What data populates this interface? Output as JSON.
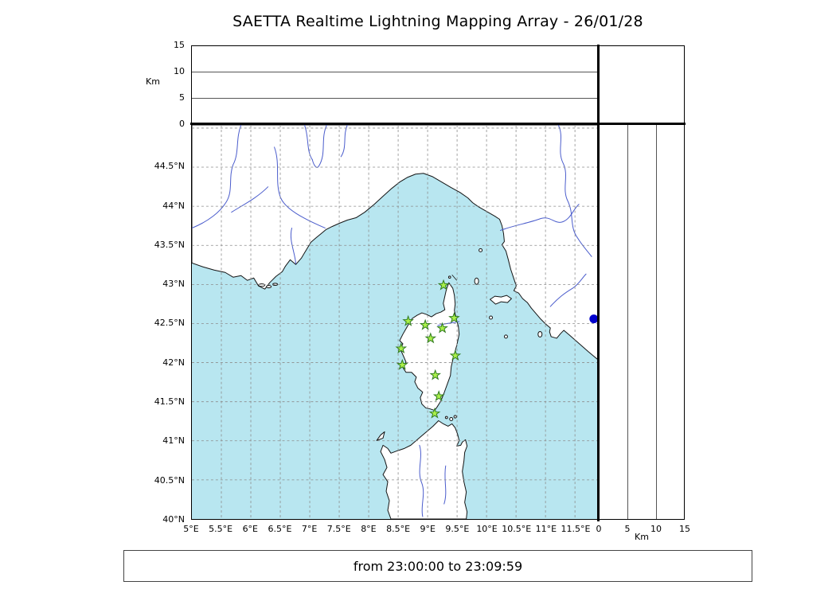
{
  "title": "SAETTA Realtime Lightning Mapping Array - 26/01/28",
  "time_range_label": "from 23:00:00 to 23:09:59",
  "colors": {
    "sea": "#b8e6f0",
    "land": "#ffffff",
    "coastline": "#141414",
    "river": "#4a5ccc",
    "grid": "#8c8c8c",
    "station_fill": "#aaf04a",
    "station_stroke": "#2f7a1f",
    "source_dot": "#0000cd"
  },
  "altitude_axis": {
    "unit_label_left": "Km",
    "unit_label_right": "Km",
    "range_km": [
      0,
      15
    ],
    "ticks": [
      {
        "label": "0",
        "km": 0
      },
      {
        "label": "5",
        "km": 5
      },
      {
        "label": "10",
        "km": 10
      },
      {
        "label": "15",
        "km": 15
      }
    ],
    "gridlines_km": [
      5,
      10
    ]
  },
  "map": {
    "bounds": {
      "lon_min": 5.0,
      "lon_max": 11.89,
      "lat_min": 40.0,
      "lat_max": 45.04
    },
    "lat_ticks": [
      {
        "label": "40°N",
        "lat": 40.0
      },
      {
        "label": "40.5°N",
        "lat": 40.5
      },
      {
        "label": "41°N",
        "lat": 41.0
      },
      {
        "label": "41.5°N",
        "lat": 41.5
      },
      {
        "label": "42°N",
        "lat": 42.0
      },
      {
        "label": "42.5°N",
        "lat": 42.5
      },
      {
        "label": "43°N",
        "lat": 43.0
      },
      {
        "label": "43.5°N",
        "lat": 43.5
      },
      {
        "label": "44°N",
        "lat": 44.0
      },
      {
        "label": "44.5°N",
        "lat": 44.5
      }
    ],
    "lon_ticks": [
      {
        "label": "5°E",
        "lon": 5.0
      },
      {
        "label": "5.5°E",
        "lon": 5.5
      },
      {
        "label": "6°E",
        "lon": 6.0
      },
      {
        "label": "6.5°E",
        "lon": 6.5
      },
      {
        "label": "7°E",
        "lon": 7.0
      },
      {
        "label": "7.5°E",
        "lon": 7.5
      },
      {
        "label": "8°E",
        "lon": 8.0
      },
      {
        "label": "8.5°E",
        "lon": 8.5
      },
      {
        "label": "9°E",
        "lon": 9.0
      },
      {
        "label": "9.5°E",
        "lon": 9.5
      },
      {
        "label": "10°E",
        "lon": 10.0
      },
      {
        "label": "10.5°E",
        "lon": 10.5
      },
      {
        "label": "11°E",
        "lon": 11.0
      },
      {
        "label": "11.5°E",
        "lon": 11.5
      }
    ],
    "grid_lats": [
      40.5,
      41.0,
      41.5,
      42.0,
      42.5,
      43.0,
      43.5,
      44.0,
      44.5,
      45.0
    ],
    "grid_lons": [
      5.5,
      6.0,
      6.5,
      7.0,
      7.5,
      8.0,
      8.5,
      9.0,
      9.5,
      10.0,
      10.5,
      11.0,
      11.5
    ],
    "stations": [
      {
        "lat": 42.99,
        "lon": 9.27
      },
      {
        "lat": 42.53,
        "lon": 8.67
      },
      {
        "lat": 42.48,
        "lon": 8.96
      },
      {
        "lat": 42.44,
        "lon": 9.25
      },
      {
        "lat": 42.57,
        "lon": 9.45
      },
      {
        "lat": 42.31,
        "lon": 9.05
      },
      {
        "lat": 42.18,
        "lon": 8.55
      },
      {
        "lat": 42.09,
        "lon": 9.47
      },
      {
        "lat": 41.97,
        "lon": 8.57
      },
      {
        "lat": 41.84,
        "lon": 9.13
      },
      {
        "lat": 41.57,
        "lon": 9.19
      },
      {
        "lat": 41.35,
        "lon": 9.12
      }
    ],
    "source_dot": {
      "lat": 42.56,
      "lon": 11.82
    }
  }
}
